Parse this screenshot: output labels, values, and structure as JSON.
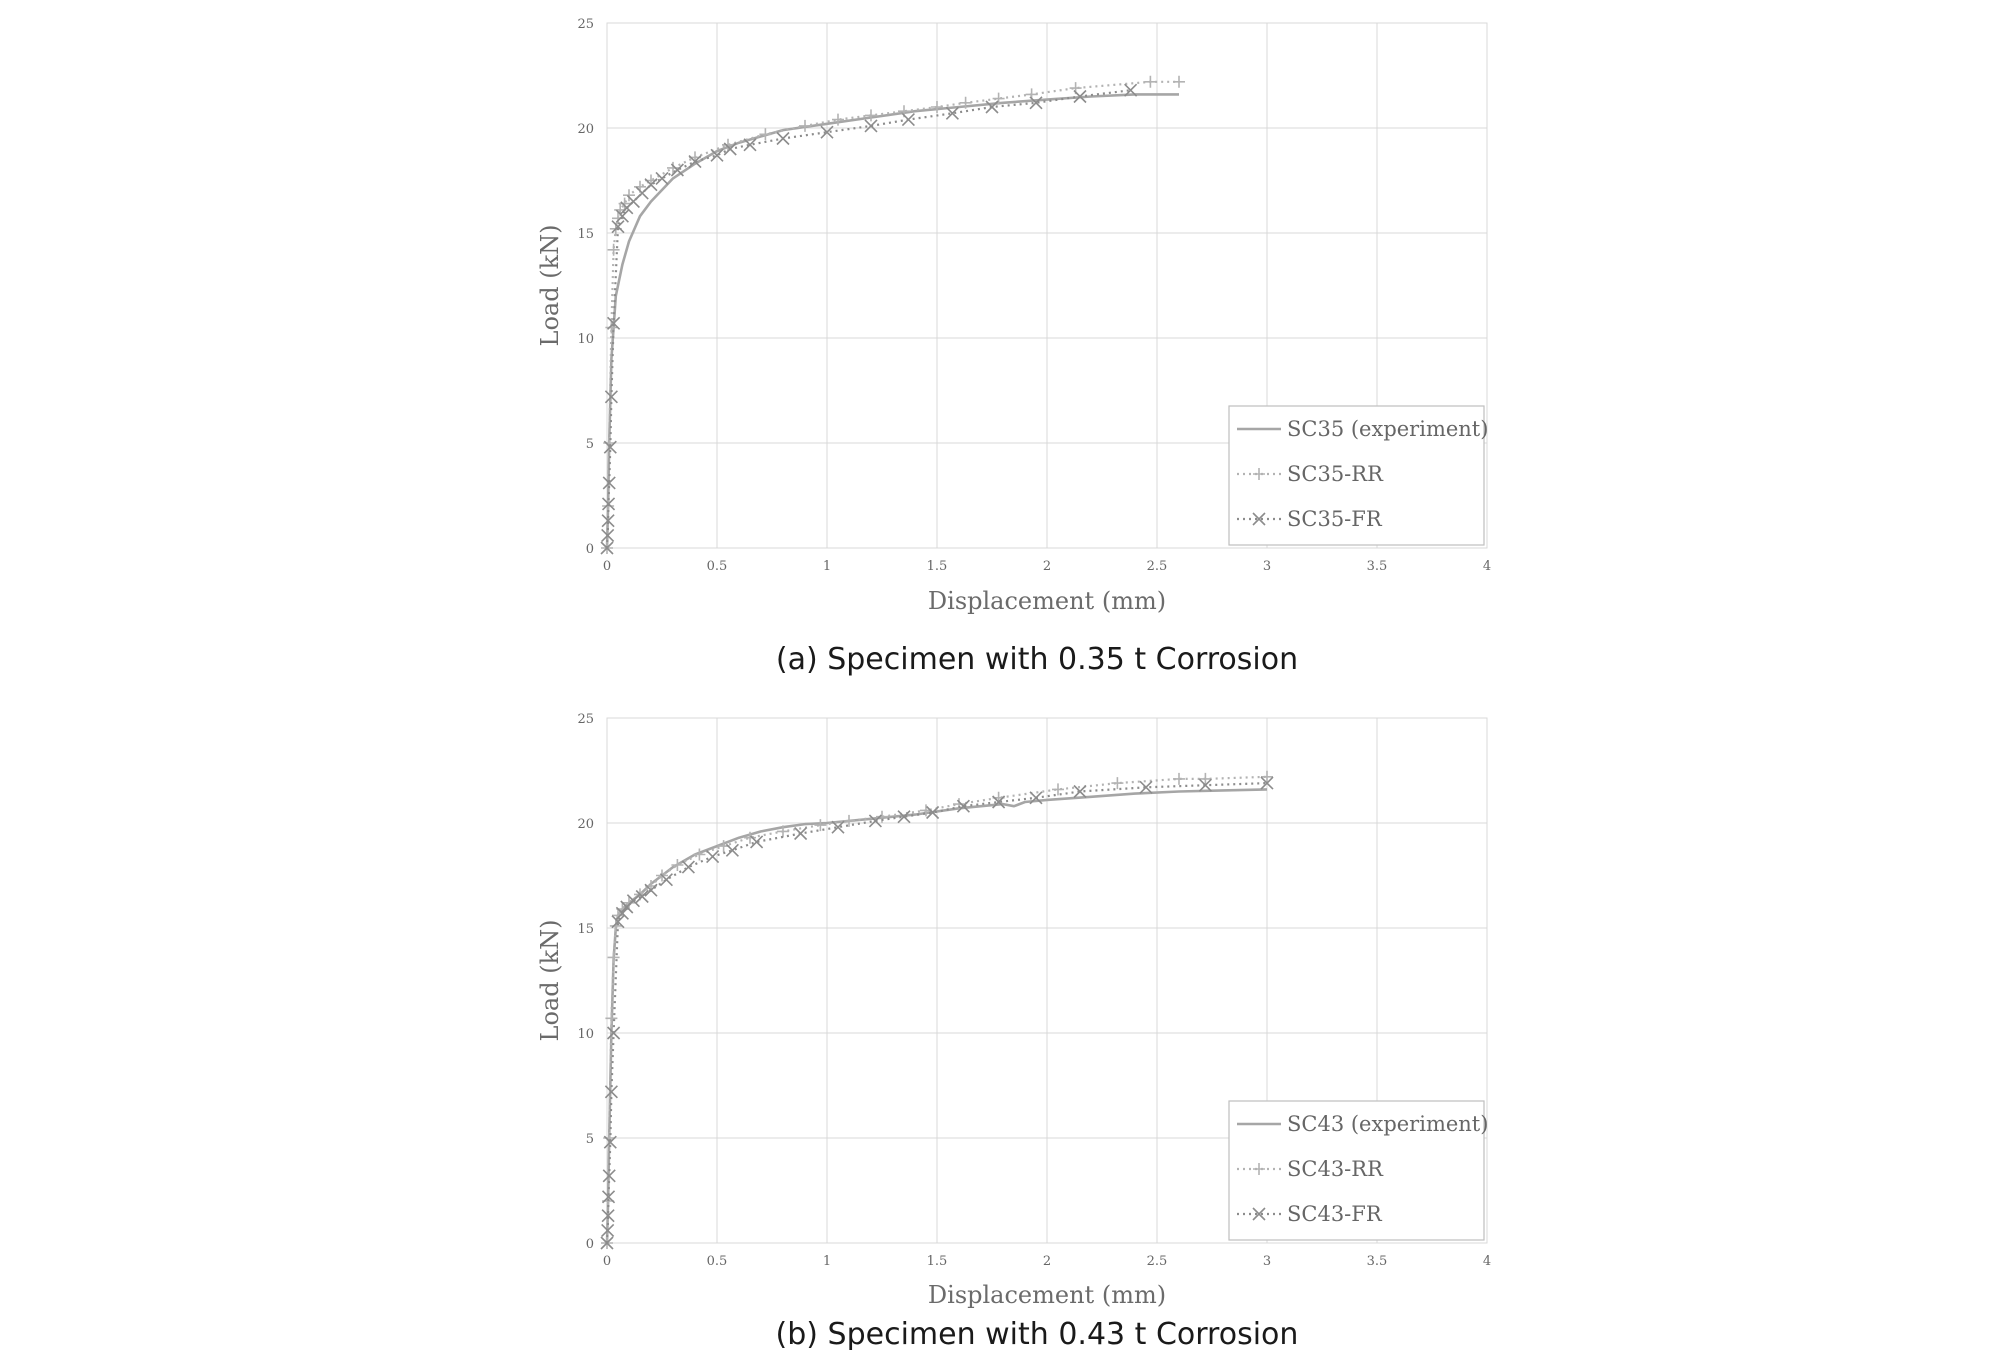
{
  "chart_data": [
    {
      "type": "line",
      "caption": "(a) Specimen with 0.35 t Corrosion",
      "xlabel": "Displacement (mm)",
      "ylabel": "Load (kN)",
      "xlim": [
        0,
        4
      ],
      "ylim": [
        0,
        25
      ],
      "xticks": [
        "0",
        "0.5",
        "1",
        "1.5",
        "2",
        "2.5",
        "3",
        "3.5",
        "4"
      ],
      "yticks": [
        "0",
        "5",
        "10",
        "15",
        "20",
        "25"
      ],
      "grid": true,
      "legend": "bottom-right",
      "series": [
        {
          "name": "SC35 (experiment)",
          "style": "solid",
          "marker": "none",
          "color": "#a6a6a6",
          "x": [
            0,
            0.005,
            0.01,
            0.02,
            0.04,
            0.07,
            0.1,
            0.15,
            0.2,
            0.3,
            0.4,
            0.5,
            0.6,
            0.7,
            0.8,
            1.0,
            1.2,
            1.4,
            1.6,
            1.8,
            2.0,
            2.2,
            2.4,
            2.6
          ],
          "y": [
            0,
            2,
            5,
            9,
            12,
            13.5,
            14.6,
            15.8,
            16.5,
            17.6,
            18.3,
            18.9,
            19.3,
            19.6,
            19.9,
            20.2,
            20.5,
            20.8,
            21.0,
            21.2,
            21.35,
            21.5,
            21.6,
            21.6
          ]
        },
        {
          "name": "SC35-RR",
          "style": "dotted",
          "marker": "plus",
          "color": "#b3b3b3",
          "x": [
            0,
            0.005,
            0.01,
            0.02,
            0.03,
            0.04,
            0.05,
            0.06,
            0.08,
            0.1,
            0.15,
            0.2,
            0.3,
            0.4,
            0.55,
            0.72,
            0.9,
            1.05,
            1.2,
            1.35,
            1.5,
            1.63,
            1.78,
            1.93,
            2.13,
            2.47,
            2.6
          ],
          "y": [
            0,
            2,
            5,
            10.5,
            14.2,
            15.2,
            15.7,
            16.1,
            16.4,
            16.8,
            17.2,
            17.5,
            18.1,
            18.6,
            19.2,
            19.7,
            20.1,
            20.4,
            20.6,
            20.8,
            21.0,
            21.2,
            21.4,
            21.6,
            21.9,
            22.2,
            22.2
          ]
        },
        {
          "name": "SC35-FR",
          "style": "dotted",
          "marker": "cross",
          "color": "#8c8c8c",
          "x": [
            0,
            0.003,
            0.005,
            0.007,
            0.01,
            0.015,
            0.02,
            0.03,
            0.05,
            0.07,
            0.09,
            0.12,
            0.16,
            0.2,
            0.25,
            0.32,
            0.4,
            0.5,
            0.56,
            0.65,
            0.8,
            1.0,
            1.2,
            1.37,
            1.57,
            1.75,
            1.95,
            2.15,
            2.38
          ],
          "y": [
            0,
            0.6,
            1.3,
            2.1,
            3.1,
            4.8,
            7.2,
            10.7,
            15.3,
            15.8,
            16.2,
            16.5,
            16.9,
            17.3,
            17.6,
            18.0,
            18.4,
            18.7,
            19.0,
            19.2,
            19.5,
            19.8,
            20.1,
            20.4,
            20.7,
            21.0,
            21.2,
            21.5,
            21.8
          ]
        }
      ]
    },
    {
      "type": "line",
      "caption": "(b) Specimen with 0.43 t Corrosion",
      "xlabel": "Displacement (mm)",
      "ylabel": "Load (kN)",
      "xlim": [
        0,
        4
      ],
      "ylim": [
        0,
        25
      ],
      "xticks": [
        "0",
        "0.5",
        "1",
        "1.5",
        "2",
        "2.5",
        "3",
        "3.5",
        "4"
      ],
      "yticks": [
        "0",
        "5",
        "10",
        "15",
        "20",
        "25"
      ],
      "grid": true,
      "legend": "bottom-right",
      "series": [
        {
          "name": "SC43 (experiment)",
          "style": "solid",
          "marker": "none",
          "color": "#a6a6a6",
          "x": [
            0,
            0.005,
            0.01,
            0.02,
            0.03,
            0.04,
            0.05,
            0.07,
            0.1,
            0.15,
            0.2,
            0.3,
            0.4,
            0.5,
            0.6,
            0.7,
            0.8,
            0.9,
            1.0,
            1.2,
            1.4,
            1.6,
            1.8,
            1.85,
            1.9,
            2.0,
            2.2,
            2.4,
            2.6,
            2.8,
            3.0
          ],
          "y": [
            0,
            2,
            5,
            10,
            13.5,
            15.0,
            15.6,
            15.9,
            16.2,
            16.6,
            17.1,
            17.9,
            18.5,
            18.9,
            19.3,
            19.6,
            19.8,
            19.95,
            20.0,
            20.2,
            20.4,
            20.7,
            20.9,
            20.8,
            21.0,
            21.1,
            21.25,
            21.4,
            21.5,
            21.55,
            21.6
          ]
        },
        {
          "name": "SC43-RR",
          "style": "dotted",
          "marker": "plus",
          "color": "#b3b3b3",
          "x": [
            0,
            0.005,
            0.01,
            0.02,
            0.03,
            0.04,
            0.05,
            0.07,
            0.1,
            0.15,
            0.2,
            0.25,
            0.32,
            0.42,
            0.53,
            0.65,
            0.8,
            0.97,
            1.1,
            1.25,
            1.45,
            1.6,
            1.78,
            2.05,
            2.32,
            2.6,
            2.72,
            3.0
          ],
          "y": [
            0,
            2,
            5,
            10.7,
            13.6,
            15.1,
            15.6,
            15.9,
            16.2,
            16.6,
            17.0,
            17.5,
            18.0,
            18.5,
            18.9,
            19.3,
            19.6,
            19.9,
            20.1,
            20.3,
            20.6,
            20.9,
            21.2,
            21.6,
            21.9,
            22.1,
            22.1,
            22.2
          ]
        },
        {
          "name": "SC43-FR",
          "style": "dotted",
          "marker": "cross",
          "color": "#8c8c8c",
          "x": [
            0,
            0.003,
            0.005,
            0.007,
            0.01,
            0.015,
            0.02,
            0.03,
            0.05,
            0.07,
            0.09,
            0.12,
            0.16,
            0.2,
            0.27,
            0.37,
            0.48,
            0.57,
            0.68,
            0.88,
            1.05,
            1.22,
            1.35,
            1.48,
            1.62,
            1.78,
            1.95,
            2.15,
            2.45,
            2.72,
            3.0
          ],
          "y": [
            0,
            0.6,
            1.3,
            2.2,
            3.2,
            4.8,
            7.2,
            10.0,
            15.3,
            15.7,
            16.0,
            16.3,
            16.5,
            16.8,
            17.3,
            17.9,
            18.4,
            18.7,
            19.1,
            19.5,
            19.8,
            20.1,
            20.3,
            20.5,
            20.8,
            21.0,
            21.2,
            21.5,
            21.7,
            21.8,
            21.9
          ]
        }
      ]
    }
  ]
}
